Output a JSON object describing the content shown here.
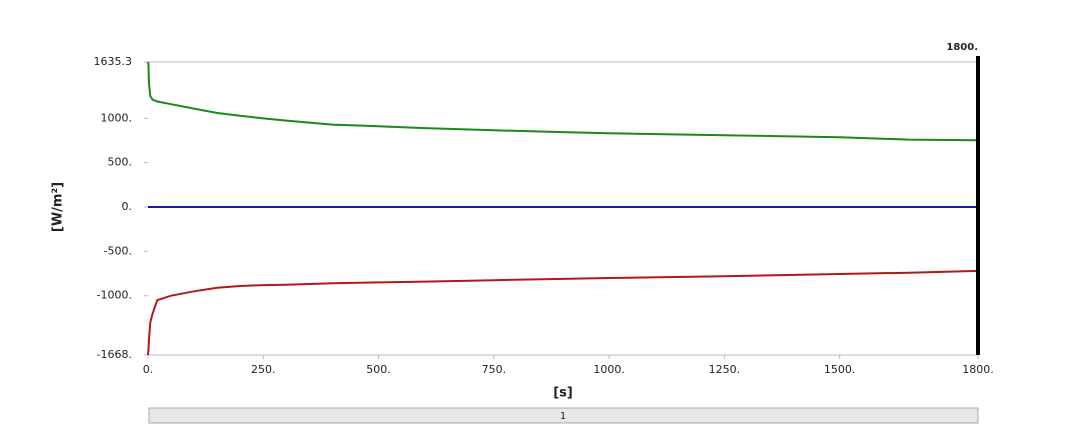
{
  "chart_data": {
    "type": "line",
    "y_label": "[W/m²]",
    "x_label": "[s]",
    "slider_label": "1",
    "cursor": {
      "value": 1800,
      "label": "1800."
    },
    "xlim": [
      0,
      1800
    ],
    "ylim": [
      -1668,
      1635.3
    ],
    "xticks": [
      {
        "value": 0,
        "label": "0."
      },
      {
        "value": 250,
        "label": "250."
      },
      {
        "value": 500,
        "label": "500."
      },
      {
        "value": 750,
        "label": "750."
      },
      {
        "value": 1000,
        "label": "1000."
      },
      {
        "value": 1250,
        "label": "1250."
      },
      {
        "value": 1500,
        "label": "1500."
      },
      {
        "value": 1800,
        "label": "1800."
      }
    ],
    "yticks": [
      1635.3,
      {
        "value": 1000,
        "label": "1000."
      },
      {
        "value": 500,
        "label": "500."
      },
      {
        "value": 0,
        "label": "0."
      },
      {
        "value": -500,
        "label": "-500."
      },
      {
        "value": -1000,
        "label": "-1000."
      },
      {
        "value": -1668,
        "label": "-1668."
      }
    ],
    "x": [
      0,
      1,
      2,
      5,
      10,
      20,
      50,
      100,
      150,
      200,
      250,
      300,
      400,
      500,
      600,
      750,
      900,
      1000,
      1250,
      1500,
      1650,
      1800
    ],
    "series": [
      {
        "color": "#1a8a1a",
        "values": [
          1635,
          1600,
          1400,
          1250,
          1210,
          1190,
          1160,
          1110,
          1060,
          1030,
          1000,
          975,
          930,
          910,
          890,
          865,
          845,
          831,
          809,
          787,
          760,
          753
        ]
      },
      {
        "color": "#1a1aa0",
        "values": [
          0,
          0,
          0,
          0,
          0,
          0,
          0,
          0,
          0,
          0,
          0,
          0,
          0,
          0,
          0,
          0,
          0,
          0,
          0,
          0,
          0,
          0
        ]
      },
      {
        "color": "#b01a1a",
        "values": [
          -1668,
          -1600,
          -1500,
          -1300,
          -1200,
          -1050,
          -1000,
          -950,
          -910,
          -890,
          -880,
          -875,
          -860,
          -850,
          -840,
          -825,
          -810,
          -800,
          -780,
          -755,
          -740,
          -720
        ]
      }
    ]
  }
}
